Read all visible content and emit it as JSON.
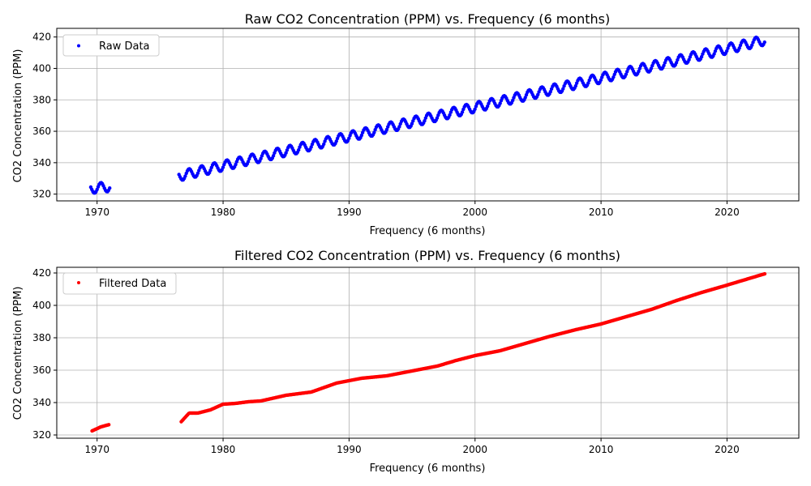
{
  "chart_data": [
    {
      "type": "scatter",
      "title": "Raw CO2 Concentration (PPM) vs. Frequency (6 months)",
      "xlabel": "Frequency (6 months)",
      "ylabel": "CO2 Concentration (PPM)",
      "xlim": [
        1966.8,
        2025.7
      ],
      "ylim": [
        315.7,
        425.5
      ],
      "xticks": [
        1970,
        1980,
        1990,
        2000,
        2010,
        2020
      ],
      "yticks": [
        320,
        340,
        360,
        380,
        400,
        420
      ],
      "grid": true,
      "legend_position": "upper left",
      "series": [
        {
          "name": "Raw Data",
          "color": "#0000ff",
          "segments": [
            {
              "x_start": 1969.5,
              "x_end": 1971.0,
              "base_start": 323.5,
              "base_end": 324.8
            },
            {
              "x_start": 1976.5,
              "x_end": 2023.0,
              "base_start": 331.5,
              "base_end": 418.0
            }
          ],
          "seasonal_amplitude": 3.1,
          "x_step": 0.0833
        }
      ]
    },
    {
      "type": "scatter",
      "title": "Filtered CO2 Concentration (PPM) vs. Frequency (6 months)",
      "xlabel": "Frequency (6 months)",
      "ylabel": "CO2 Concentration (PPM)",
      "xlim": [
        1966.8,
        2025.7
      ],
      "ylim": [
        318.0,
        423.5
      ],
      "xticks": [
        1970,
        1980,
        1990,
        2000,
        2010,
        2020
      ],
      "yticks": [
        320,
        340,
        360,
        380,
        400,
        420
      ],
      "grid": true,
      "legend_position": "upper left",
      "series": [
        {
          "name": "Filtered Data",
          "color": "#ff0000",
          "anchors": [
            [
              1969.6,
              322.5
            ],
            [
              1970.3,
              325.0
            ],
            [
              1971.0,
              326.5
            ],
            [
              1976.6,
              327.5
            ],
            [
              1977.3,
              333.5
            ],
            [
              1978.0,
              333.5
            ],
            [
              1979.0,
              335.5
            ],
            [
              1980.0,
              339.0
            ],
            [
              1981.0,
              339.5
            ],
            [
              1982.0,
              340.5
            ],
            [
              1983.0,
              341.0
            ],
            [
              1985.0,
              344.5
            ],
            [
              1987.0,
              346.5
            ],
            [
              1989.0,
              352.0
            ],
            [
              1991.0,
              355.0
            ],
            [
              1993.0,
              356.5
            ],
            [
              1995.0,
              359.5
            ],
            [
              1997.0,
              362.5
            ],
            [
              1998.5,
              366.0
            ],
            [
              2000.0,
              369.0
            ],
            [
              2002.0,
              372.0
            ],
            [
              2004.0,
              376.5
            ],
            [
              2006.0,
              381.0
            ],
            [
              2008.0,
              385.0
            ],
            [
              2010.0,
              388.5
            ],
            [
              2012.0,
              393.0
            ],
            [
              2014.0,
              397.5
            ],
            [
              2016.0,
              403.0
            ],
            [
              2018.0,
              408.0
            ],
            [
              2020.0,
              412.5
            ],
            [
              2023.0,
              419.5
            ]
          ],
          "x_step": 0.0833
        }
      ]
    }
  ]
}
